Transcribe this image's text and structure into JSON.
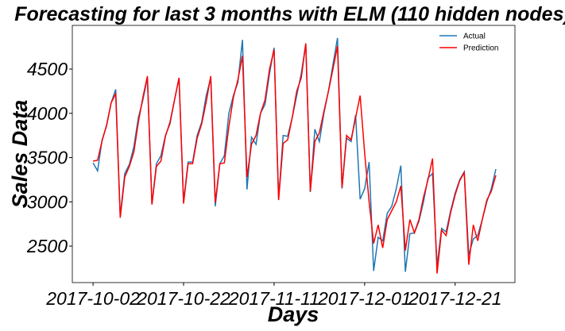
{
  "chart_data": {
    "type": "line",
    "title": "Forecasting for last 3 months with ELM (110 hidden nodes)",
    "xlabel": "Days",
    "ylabel": "Sales Data",
    "x": [
      "2017-10-02",
      "2017-10-03",
      "2017-10-04",
      "2017-10-05",
      "2017-10-06",
      "2017-10-07",
      "2017-10-08",
      "2017-10-09",
      "2017-10-10",
      "2017-10-11",
      "2017-10-12",
      "2017-10-13",
      "2017-10-14",
      "2017-10-15",
      "2017-10-16",
      "2017-10-17",
      "2017-10-18",
      "2017-10-19",
      "2017-10-20",
      "2017-10-21",
      "2017-10-22",
      "2017-10-23",
      "2017-10-24",
      "2017-10-25",
      "2017-10-26",
      "2017-10-27",
      "2017-10-28",
      "2017-10-29",
      "2017-10-30",
      "2017-10-31",
      "2017-11-01",
      "2017-11-02",
      "2017-11-03",
      "2017-11-04",
      "2017-11-05",
      "2017-11-06",
      "2017-11-07",
      "2017-11-08",
      "2017-11-09",
      "2017-11-10",
      "2017-11-11",
      "2017-11-12",
      "2017-11-13",
      "2017-11-14",
      "2017-11-15",
      "2017-11-16",
      "2017-11-17",
      "2017-11-18",
      "2017-11-19",
      "2017-11-20",
      "2017-11-21",
      "2017-11-22",
      "2017-11-23",
      "2017-11-24",
      "2017-11-25",
      "2017-11-26",
      "2017-11-27",
      "2017-11-28",
      "2017-11-29",
      "2017-11-30",
      "2017-12-01",
      "2017-12-02",
      "2017-12-03",
      "2017-12-04",
      "2017-12-05",
      "2017-12-06",
      "2017-12-07",
      "2017-12-08",
      "2017-12-09",
      "2017-12-10",
      "2017-12-11",
      "2017-12-12",
      "2017-12-13",
      "2017-12-14",
      "2017-12-15",
      "2017-12-16",
      "2017-12-17",
      "2017-12-18",
      "2017-12-19",
      "2017-12-20",
      "2017-12-21",
      "2017-12-22",
      "2017-12-23",
      "2017-12-24",
      "2017-12-25",
      "2017-12-26",
      "2017-12-27",
      "2017-12-28",
      "2017-12-29",
      "2017-12-30"
    ],
    "series": [
      {
        "name": "Actual",
        "color": "#1f77b4",
        "values": [
          3440,
          3350,
          3700,
          3860,
          4120,
          4270,
          2840,
          3320,
          3420,
          3620,
          3950,
          4150,
          4400,
          2970,
          3430,
          3520,
          3750,
          3880,
          4150,
          4400,
          3000,
          3450,
          3450,
          3750,
          3900,
          4200,
          4400,
          2950,
          3430,
          3520,
          4000,
          4200,
          4350,
          4830,
          3140,
          3730,
          3650,
          4000,
          4100,
          4450,
          4740,
          3030,
          3750,
          3740,
          3950,
          4200,
          4450,
          4780,
          3110,
          3820,
          3680,
          4000,
          4250,
          4550,
          4850,
          3150,
          3720,
          3680,
          3980,
          3030,
          3150,
          3450,
          2220,
          2600,
          2560,
          2870,
          2950,
          3150,
          3410,
          2210,
          2640,
          2650,
          2780,
          3000,
          3270,
          3320,
          2280,
          2700,
          2660,
          2900,
          3100,
          3250,
          3340,
          2400,
          2580,
          2620,
          2800,
          3000,
          3150,
          3370
        ]
      },
      {
        "name": "Prediction",
        "color": "#ff0000",
        "values": [
          3460,
          3470,
          3690,
          3870,
          4120,
          4220,
          2820,
          3280,
          3400,
          3560,
          3900,
          4180,
          4420,
          2970,
          3400,
          3460,
          3740,
          3900,
          4150,
          4400,
          2980,
          3430,
          3430,
          3720,
          3880,
          4130,
          4420,
          2990,
          3430,
          3440,
          3850,
          4180,
          4380,
          4650,
          3280,
          3650,
          3750,
          4000,
          4150,
          4500,
          4720,
          3020,
          3660,
          3700,
          3950,
          4250,
          4400,
          4790,
          3120,
          3680,
          3780,
          4020,
          4250,
          4500,
          4760,
          3160,
          3750,
          3700,
          3950,
          4200,
          3550,
          3000,
          2530,
          2740,
          2480,
          2800,
          2900,
          3000,
          3180,
          2450,
          2800,
          2650,
          2800,
          3050,
          3250,
          3490,
          2190,
          2680,
          2620,
          2880,
          3080,
          3240,
          3330,
          2290,
          2740,
          2560,
          2800,
          3020,
          3120,
          3300
        ]
      }
    ],
    "xlim": [
      "2017-09-27T10:00",
      "2018-01-03T05:00"
    ],
    "xticks": [
      "2017-10-02",
      "2017-10-22",
      "2017-11-11",
      "2017-12-01",
      "2017-12-21"
    ],
    "ylim": [
      2088,
      4993
    ],
    "yticks": [
      2500,
      3000,
      3500,
      4000,
      4500
    ],
    "legend": "upper right",
    "grid": false
  }
}
